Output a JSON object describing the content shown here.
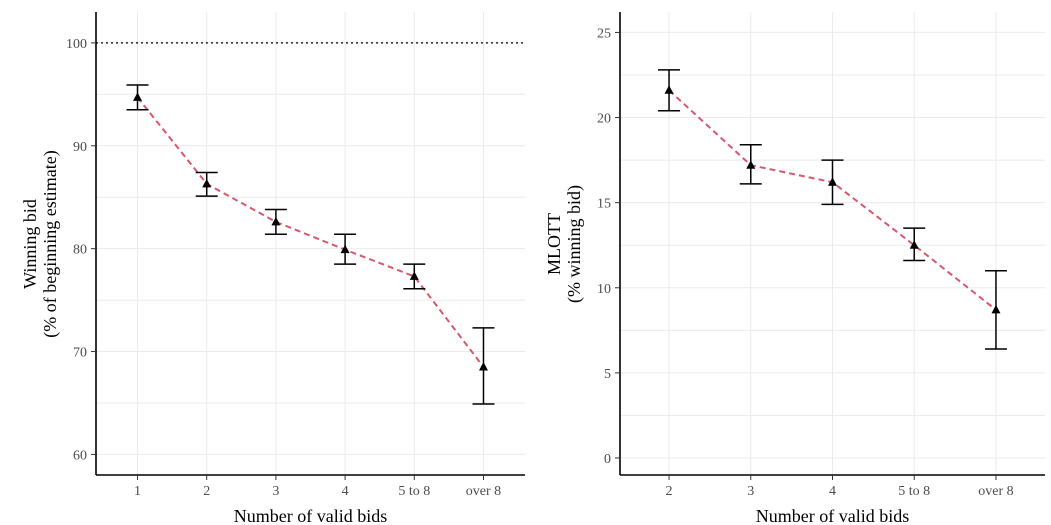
{
  "chart_data": [
    {
      "type": "scatter",
      "xlabel": "Number of valid bids",
      "ylabel": [
        "Winning bid",
        "(% of beginning estimate)"
      ],
      "categories": [
        "1",
        "2",
        "3",
        "4",
        "5 to 8",
        "over 8"
      ],
      "ylim": [
        58,
        103
      ],
      "yticks": [
        60,
        70,
        80,
        90,
        100
      ],
      "reference_line": 100,
      "grid": true,
      "series": [
        {
          "values": [
            94.7,
            86.3,
            82.6,
            79.9,
            77.3,
            68.5
          ],
          "lower": [
            93.5,
            85.1,
            81.4,
            78.5,
            76.1,
            64.9
          ],
          "upper": [
            95.9,
            87.4,
            83.8,
            81.4,
            78.5,
            72.3
          ]
        }
      ]
    },
    {
      "type": "scatter",
      "xlabel": "Number of valid bids",
      "ylabel": [
        "MLOTT",
        "(% winning bid)"
      ],
      "categories": [
        "2",
        "3",
        "4",
        "5 to 8",
        "over 8"
      ],
      "ylim": [
        -1,
        26.2
      ],
      "yticks": [
        0,
        5,
        10,
        15,
        20,
        25
      ],
      "grid": true,
      "series": [
        {
          "values": [
            21.6,
            17.2,
            16.2,
            12.5,
            8.7
          ],
          "lower": [
            20.4,
            16.1,
            14.9,
            11.6,
            6.4
          ],
          "upper": [
            22.8,
            18.4,
            17.5,
            13.5,
            11.0
          ]
        }
      ]
    }
  ]
}
